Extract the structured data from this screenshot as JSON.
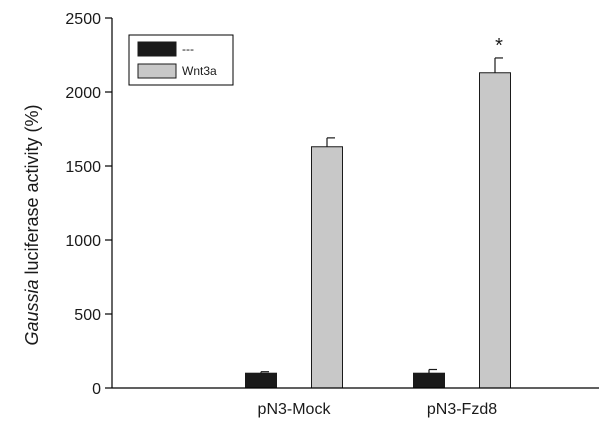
{
  "chart_data": {
    "type": "bar",
    "ylabel_italic": "Gaussia",
    "ylabel_rest": " luciferase activity (%)",
    "categories": [
      "pN3-Mock",
      "pN3-Fzd8"
    ],
    "ylim": [
      0,
      2500
    ],
    "yticks": [
      "0",
      "500",
      "1000",
      "1500",
      "2000",
      "2500"
    ],
    "series": [
      {
        "name": "---",
        "values": [
          100,
          100
        ],
        "errors": [
          10,
          25
        ],
        "color": "#1a1a1a"
      },
      {
        "name": "Wnt3a",
        "values": [
          1630,
          2130
        ],
        "errors": [
          60,
          100
        ],
        "color": "#c8c8c8"
      }
    ],
    "annotations": [
      {
        "text": "*",
        "series": 1,
        "category": 1
      }
    ],
    "legend_position": "top-left"
  }
}
